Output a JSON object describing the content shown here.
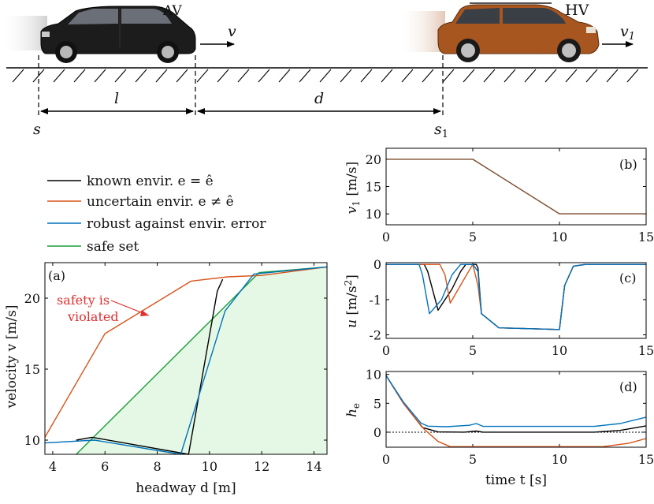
{
  "figure": {
    "scene": {
      "av_label": "AV",
      "hv_label": "HV",
      "v_label": "v",
      "v1_label": "v",
      "v1_sub": "1",
      "l_label": "l",
      "d_label": "d",
      "s_label": "s",
      "s1_label": "s",
      "s1_sub": "1",
      "av_color": "#1c1c1c",
      "hv_color": "#a8561f"
    },
    "legend": [
      {
        "label": "known envir.  e = ê",
        "color": "#000000"
      },
      {
        "label": "uncertain envir.  e ≠ ê",
        "color": "#d95319"
      },
      {
        "label": "robust against envir. error",
        "color": "#0072bd"
      },
      {
        "label": "safe set",
        "color": "#1a9e3a"
      }
    ],
    "annotation": {
      "line1": "safety is",
      "line2": "violated",
      "color": "#e03030"
    }
  },
  "chart_data": [
    {
      "id": "a",
      "type": "line",
      "panel_label": "(a)",
      "xlabel": "headway d [m]",
      "ylabel": "velocity v [m/s]",
      "xlim": [
        3.7,
        14.5
      ],
      "ylim": [
        9.0,
        22.5
      ],
      "xticks": [
        4,
        6,
        8,
        10,
        12,
        14
      ],
      "yticks": [
        10,
        15,
        20
      ],
      "safe_set": {
        "color": "#1a9e3a",
        "fill": "#e5f8e5",
        "x": [
          4.9,
          11.9,
          14.5
        ],
        "y": [
          9.0,
          21.8,
          22.2
        ]
      },
      "series": [
        {
          "name": "known envir.",
          "color": "#000000",
          "x": [
            4.9,
            5.5,
            9.2,
            10.3,
            10.5,
            10.35
          ],
          "y": [
            10.0,
            10.2,
            9.0,
            20.5,
            21.3,
            20.7
          ]
        },
        {
          "name": "uncertain envir.",
          "color": "#d95319",
          "x": [
            3.7,
            6.0,
            9.3,
            10.7,
            12.0,
            14.5
          ],
          "y": [
            10.2,
            17.5,
            21.2,
            21.5,
            21.6,
            22.2
          ]
        },
        {
          "name": "robust",
          "color": "#0072bd",
          "x": [
            3.7,
            5.6,
            8.9,
            10.6,
            11.7,
            14.5
          ],
          "y": [
            9.8,
            10.0,
            9.0,
            19.1,
            21.7,
            22.2
          ]
        }
      ]
    },
    {
      "id": "b",
      "type": "line",
      "panel_label": "(b)",
      "ylabel": "v1 [m/s]",
      "xlim": [
        0,
        15
      ],
      "ylim": [
        8,
        22
      ],
      "xticks": [
        0,
        5,
        10,
        15
      ],
      "yticks": [
        10,
        15,
        20
      ],
      "series": [
        {
          "name": "HV velocity",
          "color": "#7a4a2a",
          "x": [
            0,
            5,
            10,
            15
          ],
          "y": [
            20,
            20,
            10,
            10
          ]
        }
      ]
    },
    {
      "id": "c",
      "type": "line",
      "panel_label": "(c)",
      "ylabel": "u [m/s2]",
      "xlim": [
        0,
        15
      ],
      "ylim": [
        -2.1,
        0.05
      ],
      "xticks": [
        0,
        5,
        10,
        15
      ],
      "yticks": [
        0,
        -1,
        -2
      ],
      "series": [
        {
          "name": "known",
          "color": "#000000",
          "x": [
            0,
            2.2,
            2.4,
            3.0,
            3.8,
            4.3,
            4.6,
            4.8,
            5.2,
            5.3,
            5.5,
            6.5,
            10,
            10.3,
            10.8,
            11.5,
            15
          ],
          "y": [
            0,
            0,
            -0.2,
            -1.3,
            -0.7,
            -0.2,
            0,
            0,
            0,
            -0.1,
            -1.4,
            -1.8,
            -1.85,
            -0.6,
            -0.05,
            0,
            0
          ]
        },
        {
          "name": "uncertain",
          "color": "#d95319",
          "x": [
            0,
            3.1,
            3.4,
            3.7,
            4.4,
            5.0,
            5.3,
            5.5,
            6.5,
            10,
            10.3,
            10.8,
            11.5,
            15
          ],
          "y": [
            0,
            0,
            -0.3,
            -1.1,
            -0.5,
            0,
            -0.6,
            -1.4,
            -1.8,
            -1.85,
            -0.6,
            -0.05,
            0,
            0
          ]
        },
        {
          "name": "robust",
          "color": "#0072bd",
          "x": [
            0,
            1.9,
            2.1,
            2.5,
            3.2,
            3.8,
            4.3,
            5.0,
            5.3,
            5.5,
            6.5,
            10,
            10.3,
            10.8,
            11.5,
            15
          ],
          "y": [
            0,
            0,
            -0.3,
            -1.4,
            -1.0,
            -0.3,
            0,
            0,
            -0.2,
            -1.4,
            -1.8,
            -1.85,
            -0.6,
            -0.05,
            0,
            0
          ]
        }
      ]
    },
    {
      "id": "d",
      "type": "line",
      "panel_label": "(d)",
      "xlabel": "time t [s]",
      "ylabel": "he",
      "xlim": [
        0,
        15
      ],
      "ylim": [
        -2.6,
        10.5
      ],
      "xticks": [
        0,
        5,
        10,
        15
      ],
      "yticks": [
        0,
        5,
        10
      ],
      "zero_line": true,
      "series": [
        {
          "name": "known",
          "color": "#000000",
          "x": [
            0,
            1,
            2.1,
            3,
            4.5,
            5.2,
            5.6,
            8,
            12,
            13.5,
            15
          ],
          "y": [
            9.8,
            5,
            0.8,
            0.05,
            0,
            0.2,
            0,
            0,
            0,
            0.3,
            1.1
          ]
        },
        {
          "name": "uncertain",
          "color": "#d95319",
          "x": [
            0,
            1,
            2.2,
            3,
            3.7,
            5,
            10,
            12.5,
            14,
            15
          ],
          "y": [
            9.8,
            5,
            0.5,
            -1.6,
            -2.5,
            -2.5,
            -2.5,
            -2.5,
            -1.9,
            -1.1
          ]
        },
        {
          "name": "robust",
          "color": "#0072bd",
          "x": [
            0,
            1,
            2.0,
            2.4,
            3.5,
            4.8,
            5.2,
            5.6,
            8,
            12,
            13.5,
            15
          ],
          "y": [
            9.8,
            5.2,
            1.6,
            1.05,
            0.95,
            1.2,
            1.5,
            1.0,
            1.0,
            1.0,
            1.5,
            2.6
          ]
        }
      ]
    }
  ]
}
